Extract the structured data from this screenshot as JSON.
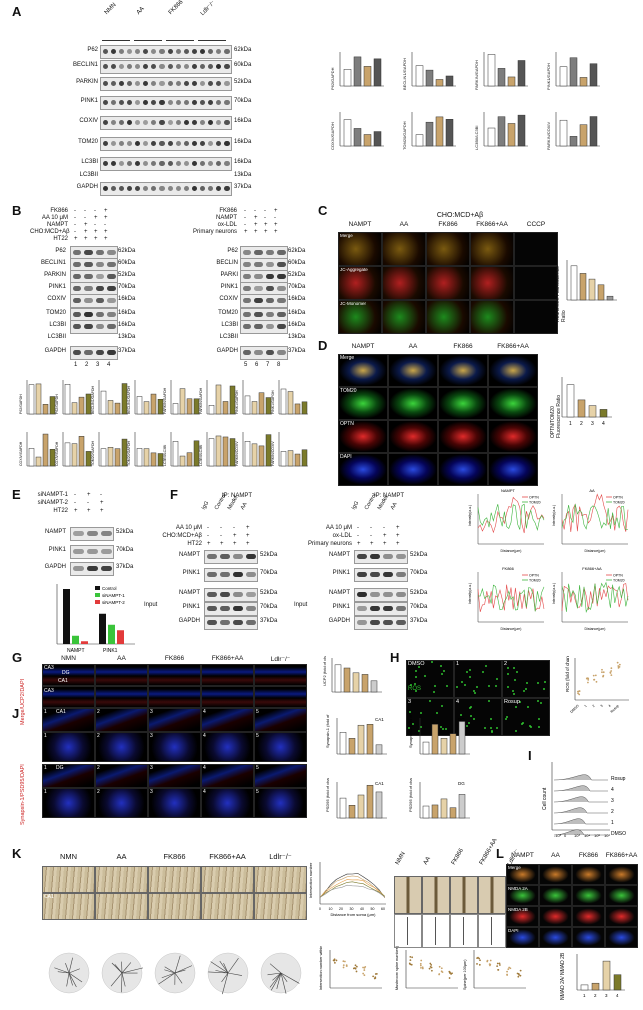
{
  "panels": [
    "A",
    "B",
    "C",
    "D",
    "E",
    "F",
    "G",
    "H",
    "I",
    "J",
    "K",
    "L"
  ],
  "A": {
    "groups": [
      "NMN",
      "AA",
      "FK866",
      "Ldlr⁻/⁻"
    ],
    "rows": [
      {
        "name": "P62",
        "kda": "62kDa"
      },
      {
        "name": "BECLIN1",
        "kda": "60kDa"
      },
      {
        "name": "PARKIN",
        "kda": "52kDa"
      },
      {
        "name": "PINK1",
        "kda": "70kDa"
      },
      {
        "name": "COXIV",
        "kda": "16kDa"
      },
      {
        "name": "TOM20",
        "kda": "16kDa"
      },
      {
        "name": "LC3BI",
        "kda": "16kDa"
      },
      {
        "name": "LC3BII",
        "kda": "13kDa"
      },
      {
        "name": "GAPDH",
        "kda": "37kDa"
      }
    ],
    "chart_ylabels": [
      "P62/GAPDH",
      "BECLIN1/GAPDH",
      "PARKIN/GAPDH",
      "PINK1/GAPDH",
      "COXIV/GAPDH",
      "TOM20/GAPDH",
      "LC3BII/LC3BI",
      "PARKIN/COXIV"
    ]
  },
  "B": {
    "left_conditions": [
      "FK866",
      "AA 10 μM",
      "NAMPT",
      "CHO:MCD+Aβ",
      "HT22"
    ],
    "left_signs": [
      [
        "-",
        "-",
        "-",
        "+"
      ],
      [
        "-",
        "-",
        "+",
        "+"
      ],
      [
        "-",
        "+",
        "-",
        "-"
      ],
      [
        "-",
        "+",
        "+",
        "+"
      ],
      [
        "+",
        "+",
        "+",
        "+"
      ]
    ],
    "right_conditions": [
      "FK866",
      "NAMPT",
      "ox-LDL",
      "Primary neurons"
    ],
    "right_signs": [
      [
        "-",
        "-",
        "-",
        "+"
      ],
      [
        "-",
        "+",
        "-",
        "-"
      ],
      [
        "-",
        "+",
        "+",
        "+"
      ],
      [
        "+",
        "+",
        "+",
        "+"
      ]
    ],
    "rows_left": [
      {
        "name": "P62",
        "kda": "62kDa"
      },
      {
        "name": "BECLIN1",
        "kda": "60kDa"
      },
      {
        "name": "PARKIN",
        "kda": "52kDa"
      },
      {
        "name": "PINK1",
        "kda": "70kDa"
      },
      {
        "name": "COXIV",
        "kda": "16kDa"
      },
      {
        "name": "TOM20",
        "kda": "16kDa"
      },
      {
        "name": "LC3BI",
        "kda": "16kDa"
      },
      {
        "name": "LC3BII",
        "kda": "13kDa"
      },
      {
        "name": "GAPDH",
        "kda": "37kDa"
      }
    ],
    "rows_right": [
      {
        "name": "P62",
        "kda": "62kDa"
      },
      {
        "name": "BECLIN",
        "kda": "60kDa"
      },
      {
        "name": "PARKI",
        "kda": "52kDa"
      },
      {
        "name": "PINK1",
        "kda": "70kDa"
      },
      {
        "name": "COXIV",
        "kda": "16kDa"
      },
      {
        "name": "TOM20",
        "kda": "16kDa"
      },
      {
        "name": "LC3BI",
        "kda": "16kDa"
      },
      {
        "name": "LC3BII",
        "kda": "13kDa"
      },
      {
        "name": "GAPDH",
        "kda": "37kDa"
      }
    ],
    "lanes_left": [
      "1",
      "2",
      "3",
      "4"
    ],
    "lanes_right": [
      "5",
      "6",
      "7",
      "8"
    ],
    "chart_ylabels": [
      "P62/GAPDH",
      "P62/GAPDH",
      "BECLIN1/GAPDH",
      "BECLIN1/GAPDH",
      "PARKIN/GAPDH",
      "PARKIN/GAPDH",
      "PINK1/GAPDH",
      "PINK1/GAPDH",
      "COXIV/GAPDH",
      "COXIV/GAPDH",
      "TOM20/GAPDH",
      "TOM20/GAPDH",
      "LC3BII/LC3BI",
      "LC3BII/LC3BI",
      "PARKIN/COXIV",
      "PARKIN/COXIV"
    ]
  },
  "C": {
    "header": "CHO:MCD+Aβ",
    "cols": [
      "NAMPT",
      "AA",
      "FK866",
      "FK866+AA",
      "CCCP"
    ],
    "rows": [
      "Merge",
      "JC-Aggregate",
      "JC-Monomer"
    ],
    "ylabel": "Red/Green Fluorescence Ratio"
  },
  "D": {
    "cols": [
      "NAMPT",
      "AA",
      "FK866",
      "FK866+AA"
    ],
    "rows": [
      "Merge",
      "TOM20",
      "OPTN",
      "DAPI"
    ],
    "ylabel": "OPTN/TOM20 Fluorescence Ratio",
    "xcats": [
      "1",
      "2",
      "3",
      "4"
    ]
  },
  "E": {
    "conditions": [
      "siNAMPT-1",
      "siNAMPT-2",
      "HT22"
    ],
    "signs": [
      [
        "-",
        "+",
        "-"
      ],
      [
        "-",
        "-",
        "+"
      ],
      [
        "+",
        "+",
        "+"
      ]
    ],
    "rows": [
      {
        "name": "NAMPT",
        "kda": "52kDa"
      },
      {
        "name": "PINK1",
        "kda": "70kDa"
      },
      {
        "name": "GAPDH",
        "kda": "37kDa"
      }
    ],
    "legend": [
      "Control",
      "siNAMPT-1",
      "siNAMPT-2"
    ],
    "xcats": [
      "NAMPT",
      "PINK1"
    ]
  },
  "F": {
    "title_left": "IP: NAMPT",
    "title_right": "IP: NAMPT",
    "lane_hdrs_left": [
      "IgG",
      "Control",
      "Model",
      "AA"
    ],
    "lane_hdrs_right": [
      "IgG",
      "Control",
      "Model",
      "AA"
    ],
    "cond_left": [
      "AA 10 μM",
      "CHO:MCD+Aβ",
      "HT22"
    ],
    "cond_right": [
      "AA 10 μM",
      "ox-LDL",
      "Primary neurons"
    ],
    "signs_left": [
      [
        "-",
        "-",
        "-",
        "+"
      ],
      [
        "-",
        "-",
        "+",
        "+"
      ],
      [
        "+",
        "+",
        "+",
        "+"
      ]
    ],
    "signs_right": [
      [
        "-",
        "-",
        "-",
        "+"
      ],
      [
        "-",
        "-",
        "+",
        "+"
      ],
      [
        "+",
        "+",
        "+",
        "+"
      ]
    ],
    "ip_rows_left": [
      {
        "name": "NAMPT",
        "kda": "52kDa"
      },
      {
        "name": "PINK1",
        "kda": "70kDa"
      }
    ],
    "input_rows_left": [
      {
        "name": "NAMPT",
        "kda": "52kDa"
      },
      {
        "name": "PINK1",
        "kda": "70kDa"
      },
      {
        "name": "GAPDH",
        "kda": "37kDa"
      }
    ],
    "ip_rows_right": [
      {
        "name": "NAMPT",
        "kda": "52kDa"
      },
      {
        "name": "PINK1",
        "kda": "70kDa"
      }
    ],
    "input_rows_right": [
      {
        "name": "NAMPT",
        "kda": "52kDa"
      },
      {
        "name": "PINK1",
        "kda": "70kDa"
      },
      {
        "name": "GAPDH",
        "kda": "37kDa"
      }
    ],
    "input_label": "Input"
  },
  "lineplots": [
    {
      "title": "NAMPT",
      "legend": [
        "OPTN",
        "TOM20"
      ],
      "ylabel": "Intensity(a.u.)",
      "xlabel": "Distance(μm)"
    },
    {
      "title": "AA",
      "legend": [
        "OPTN",
        "TOM20"
      ],
      "ylabel": "Intensity(a.u.)",
      "xlabel": "Distance(μm)"
    },
    {
      "title": "FK866",
      "legend": [
        "OPTN",
        "TOM20"
      ],
      "ylabel": "Intensity(a.u.)",
      "xlabel": "Distance(μm)"
    },
    {
      "title": "FK866+AA",
      "legend": [
        "OPTN",
        "TOM20"
      ],
      "ylabel": "Intensity(a.u.)",
      "xlabel": "Distance(μm)"
    }
  ],
  "G": {
    "cols": [
      "NMN",
      "AA",
      "FK866",
      "FK866+AA",
      "Ldlr⁻/⁻"
    ],
    "side_label": "Merge/UCP2/DAPI",
    "region_labels": [
      "CA3",
      "DG",
      "CA1",
      "CA3"
    ],
    "ylabel": "UCP2 (fold of change)"
  },
  "H": {
    "cells": [
      "DMSO",
      "1",
      "2",
      "3",
      "4",
      "Rosup"
    ],
    "stain": "ROS",
    "ylabel": "ROS (fold of change)"
  },
  "I": {
    "ylabel": "Cell count",
    "rows": [
      "Rosup",
      "4",
      "3",
      "2",
      "1",
      "DMSO"
    ],
    "xticks": [
      "-10³",
      "0",
      "10³",
      "10⁴",
      "10⁵",
      "10⁶"
    ]
  },
  "J": {
    "side_label": "Synapsin-1/PSD95/DAPI",
    "regions": [
      "CA1",
      "DG"
    ],
    "nums": [
      "1",
      "2",
      "3",
      "4",
      "5"
    ],
    "charts": [
      {
        "ylabel": "Synapsin-1 (fold of change)",
        "tag": "CA1"
      },
      {
        "ylabel": "Synapsin-1 (fold of change)",
        "tag": "DG"
      },
      {
        "ylabel": "PSD95 (fold of change)",
        "tag": "CA1"
      },
      {
        "ylabel": "PSD95 (fold of change)",
        "tag": "DG"
      }
    ]
  },
  "K": {
    "cols": [
      "NMN",
      "AA",
      "FK866",
      "FK866+AA",
      "Ldlr⁻/⁻"
    ],
    "region": "CA1",
    "sholl": {
      "ylabel": "Intersection number",
      "xlabel": "Distance from soma (μm)",
      "xticks": [
        "0",
        "10",
        "20",
        "30",
        "40",
        "50",
        "60"
      ]
    },
    "spine_cols": [
      "NMN",
      "AA",
      "FK866",
      "FK866+AA",
      "Ldlr⁻/⁻"
    ],
    "charts": [
      {
        "ylabel": "Intersection number within 70μm"
      },
      {
        "ylabel": "Mushroom spine number (per 100μm)"
      },
      {
        "ylabel": "Spine(per 100μm)"
      }
    ]
  },
  "L": {
    "cols": [
      "NAMPT",
      "AA",
      "FK866",
      "FK866+AA"
    ],
    "rows": [
      "Merge",
      "NMDA 2A",
      "NMDA 2B",
      "DAPI"
    ],
    "ylabel": "NMAD 2A/ NMAD 2B",
    "xcats": [
      "1",
      "2",
      "3",
      "4"
    ]
  },
  "colors": {
    "fk": "#c8a36b",
    "ldlr": "#8a8a8a",
    "olive": "#7b7a2a",
    "optn": "#e34a4a",
    "tom": "#3fb53f",
    "ros": "#2fbf2f"
  }
}
